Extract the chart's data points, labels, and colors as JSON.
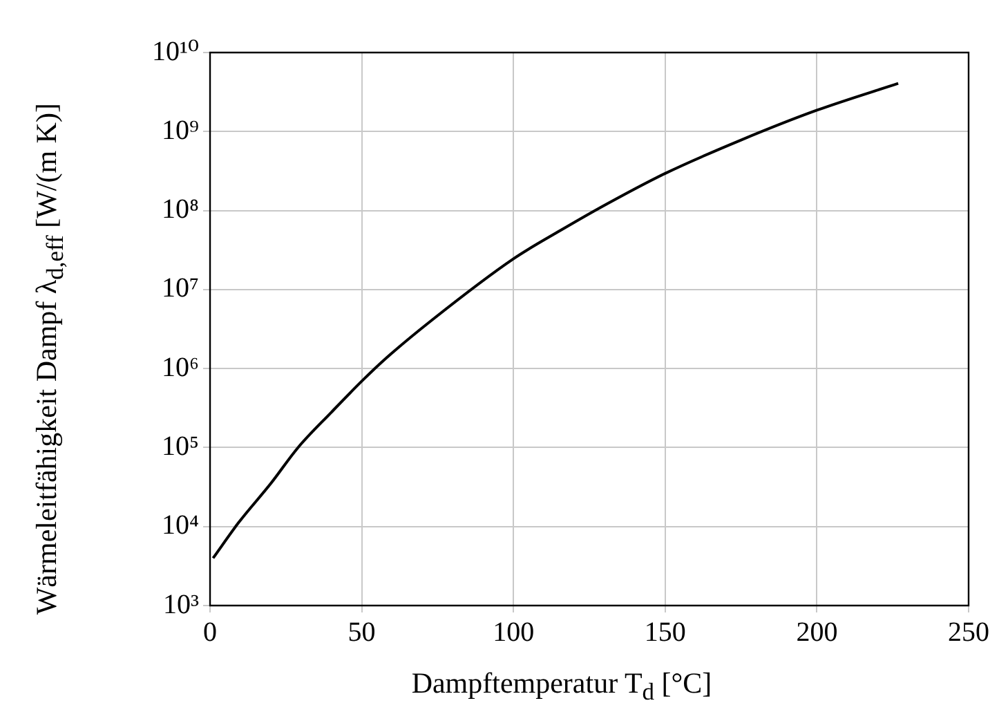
{
  "chart_data": {
    "type": "line",
    "xlabel": "Dampftemperatur T$_{d}$ [°C]",
    "ylabel": "Wärmeleitfähigkeit Dampf λ$_{d,eff}$ [W/(m K)]",
    "x": [
      1,
      9.4,
      20,
      29,
      40,
      50,
      58,
      73,
      100,
      115.5,
      130.6,
      150,
      175,
      200,
      226.8
    ],
    "series": [
      {
        "color": "#000000",
        "values": [
          3980,
          11200,
          35000,
          100000,
          280000,
          692000,
          1350000,
          4070000,
          24500000,
          56000000,
          120000000,
          295000000,
          780000000,
          1860000000,
          4070000000
        ]
      }
    ],
    "xlim": [
      0,
      250
    ],
    "xticks": [
      0,
      50,
      100,
      150,
      200,
      250
    ],
    "ylim": [
      1000,
      10000000000
    ],
    "yticks": [
      {
        "value": 1000,
        "label": "10³"
      },
      {
        "value": 10000,
        "label": "10⁴"
      },
      {
        "value": 100000,
        "label": "10⁵"
      },
      {
        "value": 1000000,
        "label": "10⁶"
      },
      {
        "value": 10000000,
        "label": "10⁷"
      },
      {
        "value": 100000000,
        "label": "10⁸"
      },
      {
        "value": 1000000000,
        "label": "10⁹"
      },
      {
        "value": 10000000000,
        "label": "10¹⁰"
      }
    ],
    "log": "y",
    "grid": true,
    "legend": false,
    "marker": "none",
    "line_style": "solid"
  }
}
